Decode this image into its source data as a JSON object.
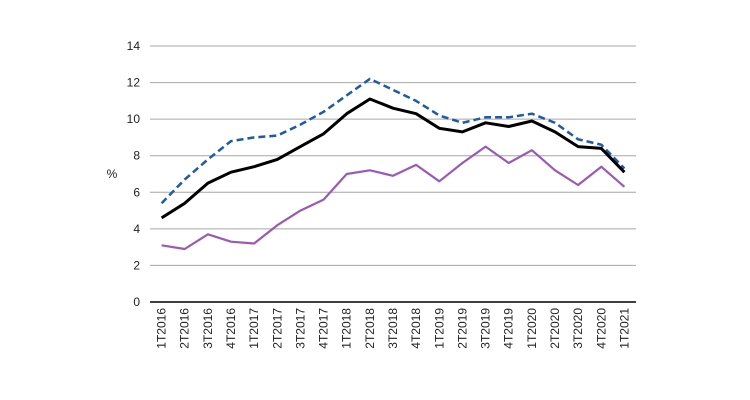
{
  "chart_data": {
    "type": "line",
    "title": "",
    "xlabel": "",
    "ylabel": "%",
    "ylim": [
      0,
      14
    ],
    "yticks": [
      "0",
      "2",
      "4",
      "6",
      "8",
      "10",
      "12",
      "14"
    ],
    "grid": true,
    "legend": "none",
    "categories": [
      "1T2016",
      "2T2016",
      "3T2016",
      "4T2016",
      "1T2017",
      "2T2017",
      "3T2017",
      "4T2017",
      "1T2018",
      "2T2018",
      "3T2018",
      "4T2018",
      "1T2019",
      "2T2019",
      "3T2019",
      "4T2019",
      "1T2020",
      "2T2020",
      "3T2020",
      "4T2020",
      "1T2021"
    ],
    "series": [
      {
        "color": "#1f5aa6",
        "style": "dashed",
        "values": [
          5.4,
          6.7,
          7.8,
          8.8,
          9.0,
          9.1,
          9.7,
          10.4,
          11.3,
          12.2,
          11.6,
          11.0,
          10.2,
          9.8,
          10.1,
          10.1,
          10.3,
          9.8,
          8.9,
          8.6,
          7.3
        ]
      },
      {
        "color": "#000000",
        "style": "solid",
        "values": [
          4.6,
          5.4,
          6.5,
          7.1,
          7.4,
          7.8,
          8.5,
          9.2,
          10.3,
          11.1,
          10.6,
          10.3,
          9.5,
          9.3,
          9.8,
          9.6,
          9.9,
          9.3,
          8.5,
          8.4,
          7.1
        ]
      },
      {
        "color": "#9b59b6",
        "style": "solid",
        "values": [
          3.1,
          2.9,
          3.7,
          3.3,
          3.2,
          4.2,
          5.0,
          5.6,
          7.0,
          7.2,
          6.9,
          7.5,
          6.6,
          7.6,
          8.5,
          7.6,
          8.3,
          7.2,
          6.4,
          7.4,
          6.3
        ]
      }
    ]
  }
}
